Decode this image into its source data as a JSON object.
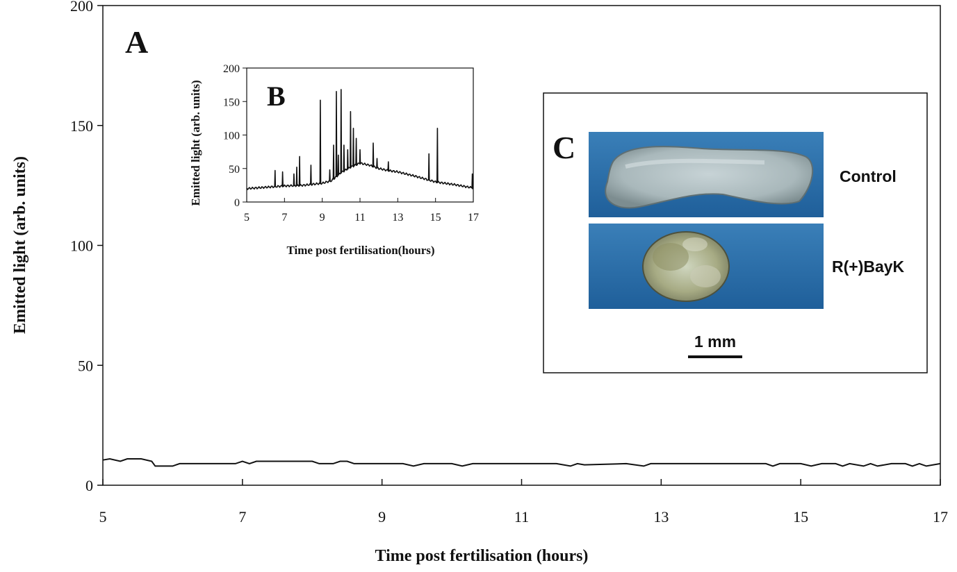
{
  "chart_data": [
    {
      "panel": "A",
      "type": "line",
      "xlabel": "Time post fertilisation (hours)",
      "ylabel": "Emitted light (arb. units)",
      "xlim": [
        5,
        17
      ],
      "ylim": [
        0,
        200
      ],
      "xticks": [
        5,
        7,
        9,
        11,
        13,
        15,
        17
      ],
      "yticks": [
        0,
        50,
        100,
        150,
        200
      ],
      "grid": false,
      "series": [
        {
          "x": [
            5.0,
            5.1,
            5.25,
            5.35,
            5.4,
            5.55,
            5.7,
            5.75,
            6.0,
            6.1,
            6.5,
            6.9,
            7.0,
            7.1,
            7.2,
            7.5,
            8.0,
            8.1,
            8.2,
            8.3,
            8.4,
            8.5,
            8.6,
            9.0,
            9.3,
            9.45,
            9.6,
            10.0,
            10.15,
            10.3,
            11.0,
            11.5,
            11.7,
            11.8,
            11.9,
            12.5,
            12.75,
            12.85,
            13.0,
            13.5,
            14.0,
            14.5,
            14.6,
            14.7,
            15.0,
            15.15,
            15.3,
            15.5,
            15.6,
            15.7,
            15.9,
            16.0,
            16.1,
            16.3,
            16.5,
            16.6,
            16.7,
            16.8,
            17.0
          ],
          "y": [
            10.5,
            11,
            10,
            11,
            11,
            11,
            10,
            8,
            8,
            9,
            9,
            9,
            10,
            9,
            10,
            10,
            10,
            9,
            9,
            9,
            10,
            10,
            9,
            9,
            9,
            8,
            9,
            9,
            8,
            9,
            9,
            9,
            8,
            9,
            8.5,
            9,
            8,
            9,
            9,
            9,
            9,
            9,
            8,
            9,
            9,
            8,
            9,
            9,
            8,
            9,
            8,
            9,
            8,
            9,
            9,
            8,
            9,
            8,
            9
          ]
        }
      ]
    },
    {
      "panel": "B",
      "type": "line",
      "xlabel": "Time post fertilisation(hours)",
      "ylabel": "Emitted light (arb. units)",
      "xlim": [
        5,
        17
      ],
      "ylim": [
        0,
        200
      ],
      "xticks": [
        5,
        7,
        9,
        11,
        13,
        15,
        17
      ],
      "yticks": [
        0,
        50,
        100,
        150,
        200
      ],
      "grid": false,
      "baseline": {
        "x": [
          5,
          6,
          7,
          8,
          9,
          9.5,
          10,
          10.5,
          11,
          11.5,
          12,
          12.5,
          13,
          14,
          15,
          16,
          17
        ],
        "y": [
          20,
          22,
          24,
          25,
          28,
          32,
          44,
          52,
          58,
          55,
          50,
          47,
          45,
          38,
          30,
          26,
          21
        ]
      },
      "spikes": [
        {
          "x": 6.5,
          "y": 47
        },
        {
          "x": 6.9,
          "y": 45
        },
        {
          "x": 7.5,
          "y": 42
        },
        {
          "x": 7.65,
          "y": 52
        },
        {
          "x": 7.8,
          "y": 68
        },
        {
          "x": 8.4,
          "y": 55
        },
        {
          "x": 8.9,
          "y": 152
        },
        {
          "x": 9.4,
          "y": 48
        },
        {
          "x": 9.6,
          "y": 85
        },
        {
          "x": 9.75,
          "y": 165
        },
        {
          "x": 9.85,
          "y": 70
        },
        {
          "x": 10.0,
          "y": 168
        },
        {
          "x": 10.15,
          "y": 85
        },
        {
          "x": 10.35,
          "y": 78
        },
        {
          "x": 10.5,
          "y": 135
        },
        {
          "x": 10.65,
          "y": 110
        },
        {
          "x": 10.8,
          "y": 95
        },
        {
          "x": 11.0,
          "y": 78
        },
        {
          "x": 11.7,
          "y": 88
        },
        {
          "x": 11.9,
          "y": 65
        },
        {
          "x": 12.5,
          "y": 60
        },
        {
          "x": 14.65,
          "y": 72
        },
        {
          "x": 15.1,
          "y": 110
        },
        {
          "x": 16.95,
          "y": 42
        }
      ]
    }
  ],
  "panels": {
    "a_label": "A",
    "b_label": "B",
    "c_label": "C"
  },
  "photo_panel": {
    "control_label": "Control",
    "treated_label": "R(+)BayK",
    "scale_label": "1 mm",
    "background_color": "#2a6ea8"
  }
}
